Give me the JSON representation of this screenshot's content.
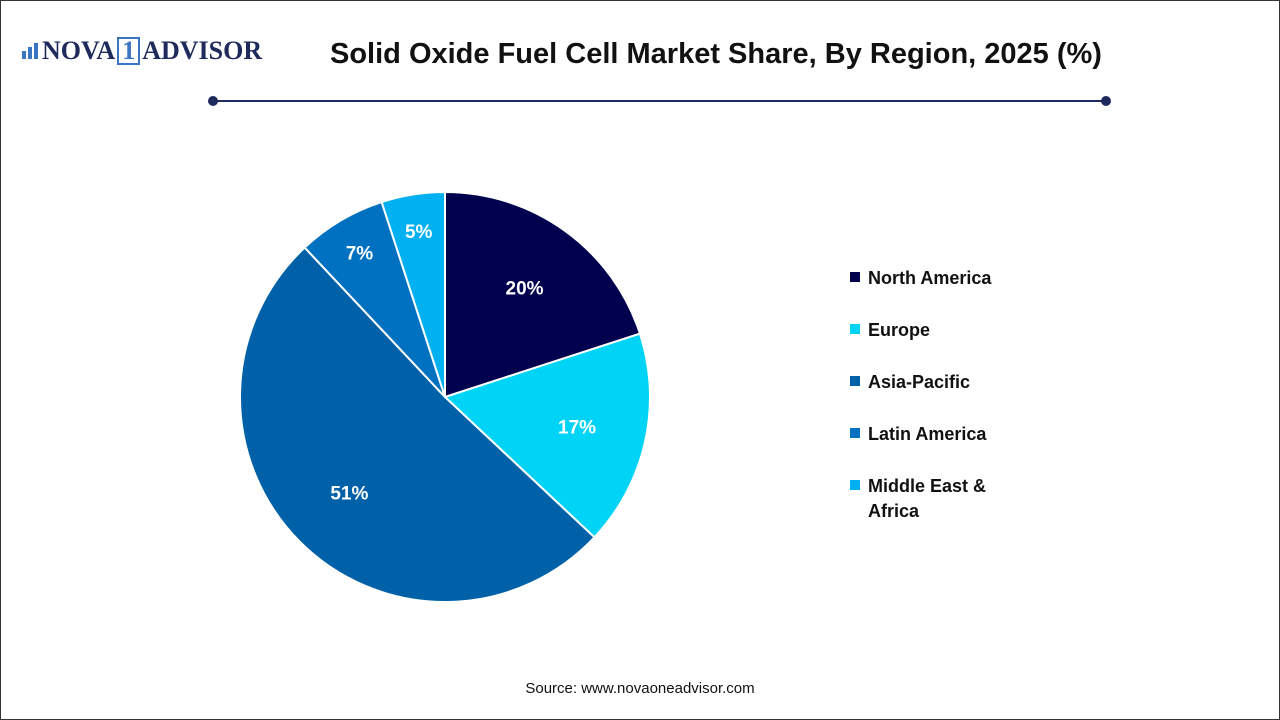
{
  "logo": {
    "text": "NOVA",
    "one": "1",
    "text2": "ADVISOR"
  },
  "header": {
    "title": "Solid Oxide Fuel Cell Market Share, By Region, 2025 (%)"
  },
  "chart_data": {
    "type": "pie",
    "title": "Solid Oxide Fuel Cell Market Share, By Region, 2025 (%)",
    "categories": [
      "North America",
      "Europe",
      "Asia-Pacific",
      "Latin America",
      "Middle East & Africa"
    ],
    "values": [
      20,
      17,
      51,
      7,
      5
    ],
    "labels": [
      "20%",
      "17%",
      "51%",
      "7%",
      "5%"
    ],
    "colors": [
      "#00004f",
      "#00d4f6",
      "#0061a8",
      "#0070c0",
      "#00b0f0"
    ],
    "legend_placement": "right"
  },
  "source": "Source: www.novaoneadvisor.com"
}
